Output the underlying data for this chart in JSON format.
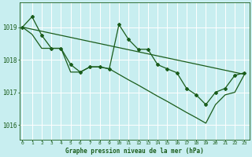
{
  "title": "Graphe pression niveau de la mer (hPa)",
  "bg_color": "#c8eef0",
  "grid_color": "#ffffff",
  "line_color": "#1a5c1a",
  "x_ticks": [
    0,
    1,
    2,
    3,
    4,
    5,
    6,
    7,
    8,
    9,
    10,
    11,
    12,
    13,
    14,
    15,
    16,
    17,
    18,
    19,
    20,
    21,
    22,
    23
  ],
  "y_ticks": [
    1016,
    1017,
    1018,
    1019
  ],
  "ylim": [
    1015.55,
    1019.75
  ],
  "xlim": [
    -0.3,
    23.5
  ],
  "main_series_x": [
    0,
    1,
    2,
    3,
    4,
    5,
    6,
    7,
    8,
    9,
    10,
    11,
    12,
    13,
    14,
    15,
    16,
    17,
    18,
    19,
    20,
    21,
    22,
    23
  ],
  "main_series_y": [
    1019.0,
    1019.32,
    1018.75,
    1018.35,
    1018.35,
    1017.85,
    1017.62,
    1017.78,
    1017.78,
    1017.72,
    1019.08,
    1018.62,
    1018.32,
    1018.32,
    1017.85,
    1017.72,
    1017.6,
    1017.12,
    1016.92,
    1016.62,
    1017.0,
    1017.12,
    1017.52,
    1017.6
  ],
  "upper_trend_x": [
    0,
    23
  ],
  "upper_trend_y": [
    1019.0,
    1017.55
  ],
  "lower_line_x": [
    0,
    1,
    2,
    3,
    4,
    5,
    6,
    7,
    8,
    9,
    10,
    11,
    12,
    13,
    14,
    15,
    16,
    17,
    18,
    19,
    20,
    21,
    22,
    23
  ],
  "lower_line_y": [
    1019.0,
    1018.78,
    1018.35,
    1018.35,
    1018.35,
    1017.62,
    1017.62,
    1017.78,
    1017.78,
    1017.72,
    1017.55,
    1017.38,
    1017.22,
    1017.05,
    1016.88,
    1016.72,
    1016.55,
    1016.38,
    1016.22,
    1016.05,
    1016.62,
    1016.92,
    1017.0,
    1017.55
  ]
}
